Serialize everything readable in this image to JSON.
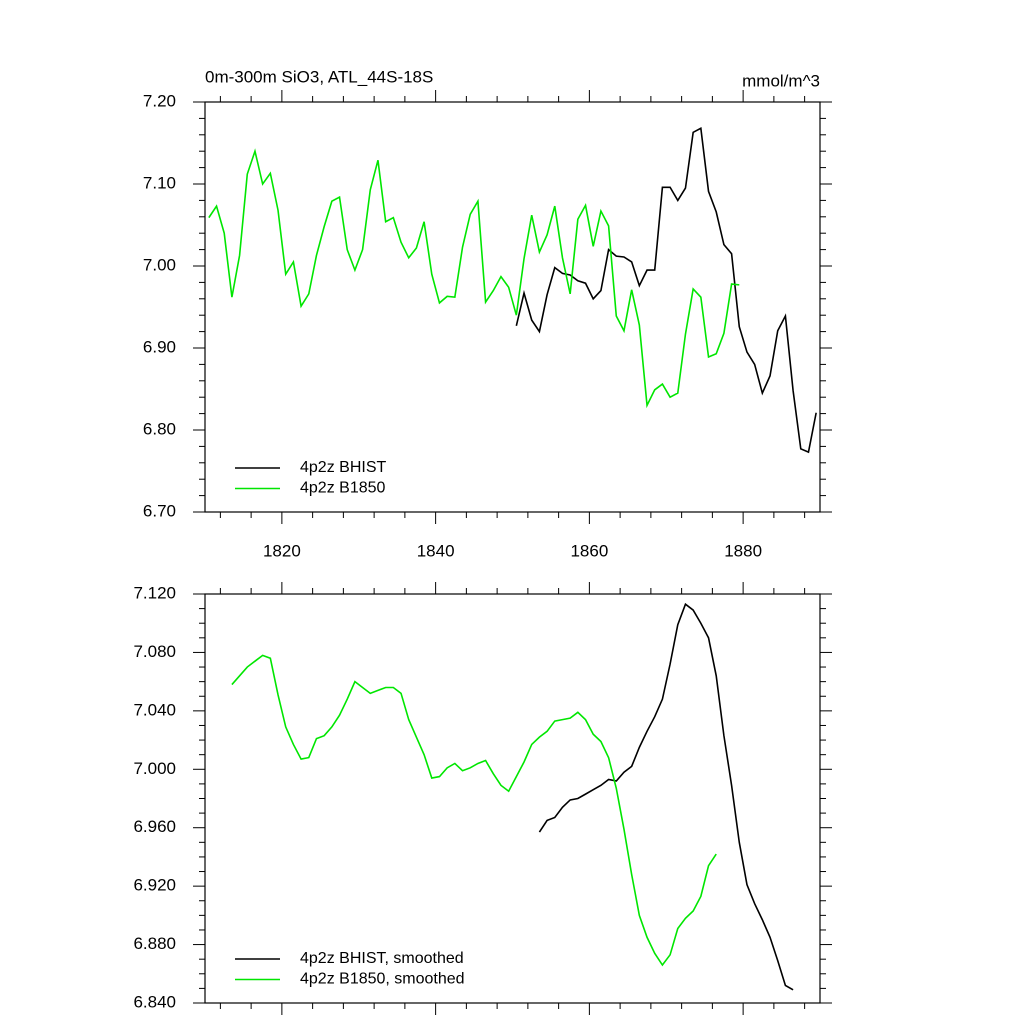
{
  "chart_data": [
    {
      "type": "line",
      "title": "0m-300m SiO3, ATL_44S-18S",
      "units": "mmol/m^3",
      "xlim": [
        1810,
        1890
      ],
      "xticks": [
        1820,
        1840,
        1860,
        1880
      ],
      "ylim": [
        6.7,
        7.2
      ],
      "yticks": [
        {
          "value": 6.7,
          "label": "6.70"
        },
        {
          "value": 6.8,
          "label": "6.80"
        },
        {
          "value": 6.9,
          "label": "6.90"
        },
        {
          "value": 7.0,
          "label": "7.00"
        },
        {
          "value": 7.1,
          "label": "7.10"
        },
        {
          "value": 7.2,
          "label": "7.20"
        }
      ],
      "legend": "lower left",
      "series": [
        {
          "name": "4p2z BHIST",
          "color": "#000000",
          "x": [
            1850.5,
            1851.5,
            1852.5,
            1853.5,
            1854.5,
            1855.5,
            1856.5,
            1857.5,
            1858.5,
            1859.5,
            1860.5,
            1861.5,
            1862.5,
            1863.5,
            1864.5,
            1865.5,
            1866.5,
            1867.5,
            1868.5,
            1869.5,
            1870.5,
            1871.5,
            1872.5,
            1873.5,
            1874.5,
            1875.5,
            1876.5,
            1877.5,
            1878.5,
            1879.5,
            1880.5,
            1881.5,
            1882.5,
            1883.5,
            1884.5,
            1885.5,
            1886.5,
            1887.5,
            1888.5,
            1889.5
          ],
          "values": [
            6.927,
            6.967,
            6.934,
            6.92,
            6.965,
            6.998,
            6.991,
            6.989,
            6.982,
            6.979,
            6.96,
            6.97,
            7.02,
            7.012,
            7.011,
            7.005,
            6.976,
            6.995,
            6.995,
            7.096,
            7.096,
            7.08,
            7.095,
            7.163,
            7.168,
            7.091,
            7.066,
            7.026,
            7.015,
            6.926,
            6.895,
            6.88,
            6.845,
            6.866,
            6.921,
            6.939,
            6.848,
            6.777,
            6.773,
            6.821
          ]
        },
        {
          "name": "4p2z B1850",
          "color": "#00e600",
          "x": [
            1810.5,
            1811.5,
            1812.5,
            1813.5,
            1814.5,
            1815.5,
            1816.5,
            1817.5,
            1818.5,
            1819.5,
            1820.5,
            1821.5,
            1822.5,
            1823.5,
            1824.5,
            1825.5,
            1826.5,
            1827.5,
            1828.5,
            1829.5,
            1830.5,
            1831.5,
            1832.5,
            1833.5,
            1834.5,
            1835.5,
            1836.5,
            1837.5,
            1838.5,
            1839.5,
            1840.5,
            1841.5,
            1842.5,
            1843.5,
            1844.5,
            1845.5,
            1846.5,
            1847.5,
            1848.5,
            1849.5,
            1850.5,
            1851.5,
            1852.5,
            1853.5,
            1854.5,
            1855.5,
            1856.5,
            1857.5,
            1858.5,
            1859.5,
            1860.5,
            1861.5,
            1862.5,
            1863.5,
            1864.5,
            1865.5,
            1866.5,
            1867.5,
            1868.5,
            1869.5,
            1870.5,
            1871.5,
            1872.5,
            1873.5,
            1874.5,
            1875.5,
            1876.5,
            1877.5,
            1878.5,
            1879.5
          ],
          "values": [
            7.059,
            7.073,
            7.04,
            6.962,
            7.013,
            7.112,
            7.14,
            7.1,
            7.113,
            7.068,
            6.99,
            7.005,
            6.951,
            6.966,
            7.013,
            7.048,
            7.079,
            7.084,
            7.02,
            6.995,
            7.02,
            7.093,
            7.129,
            7.054,
            7.059,
            7.029,
            7.01,
            7.022,
            7.054,
            6.99,
            6.955,
            6.963,
            6.962,
            7.023,
            7.063,
            7.079,
            6.956,
            6.97,
            6.987,
            6.974,
            6.94,
            7.009,
            7.062,
            7.017,
            7.038,
            7.073,
            7.01,
            6.966,
            7.057,
            7.074,
            7.024,
            7.067,
            7.049,
            6.939,
            6.921,
            6.971,
            6.928,
            6.83,
            6.849,
            6.856,
            6.84,
            6.845,
            6.917,
            6.972,
            6.962,
            6.889,
            6.893,
            6.918,
            6.978,
            6.977
          ]
        }
      ]
    },
    {
      "type": "line",
      "xlim": [
        1810,
        1890
      ],
      "xticks": [
        1820,
        1840,
        1860,
        1880
      ],
      "ylim": [
        6.84,
        7.12
      ],
      "yticks": [
        {
          "value": 6.84,
          "label": "6.840"
        },
        {
          "value": 6.88,
          "label": "6.880"
        },
        {
          "value": 6.92,
          "label": "6.920"
        },
        {
          "value": 6.96,
          "label": "6.960"
        },
        {
          "value": 7.0,
          "label": "7.000"
        },
        {
          "value": 7.04,
          "label": "7.040"
        },
        {
          "value": 7.08,
          "label": "7.080"
        },
        {
          "value": 7.12,
          "label": "7.120"
        }
      ],
      "legend": "lower left",
      "series": [
        {
          "name": "4p2z BHIST, smoothed",
          "color": "#000000",
          "x": [
            1853.5,
            1854.5,
            1855.5,
            1856.5,
            1857.5,
            1858.5,
            1859.5,
            1860.5,
            1861.5,
            1862.5,
            1863.5,
            1864.5,
            1865.5,
            1866.5,
            1867.5,
            1868.5,
            1869.5,
            1870.5,
            1871.5,
            1872.5,
            1873.5,
            1874.5,
            1875.5,
            1876.5,
            1877.5,
            1878.5,
            1879.5,
            1880.5,
            1881.5,
            1882.5,
            1883.5,
            1884.5,
            1885.5,
            1886.5
          ],
          "values": [
            6.957,
            6.965,
            6.967,
            6.974,
            6.979,
            6.98,
            6.983,
            6.986,
            6.989,
            6.993,
            6.992,
            6.998,
            7.002,
            7.015,
            7.026,
            7.036,
            7.048,
            7.072,
            7.099,
            7.113,
            7.109,
            7.1,
            7.09,
            7.064,
            7.023,
            6.989,
            6.95,
            6.921,
            6.908,
            6.897,
            6.885,
            6.869,
            6.852,
            6.849
          ]
        },
        {
          "name": "4p2z B1850, smoothed",
          "color": "#00e600",
          "x": [
            1813.5,
            1814.5,
            1815.5,
            1816.5,
            1817.5,
            1818.5,
            1819.5,
            1820.5,
            1821.5,
            1822.5,
            1823.5,
            1824.5,
            1825.5,
            1826.5,
            1827.5,
            1828.5,
            1829.5,
            1830.5,
            1831.5,
            1832.5,
            1833.5,
            1834.5,
            1835.5,
            1836.5,
            1837.5,
            1838.5,
            1839.5,
            1840.5,
            1841.5,
            1842.5,
            1843.5,
            1844.5,
            1845.5,
            1846.5,
            1847.5,
            1848.5,
            1849.5,
            1850.5,
            1851.5,
            1852.5,
            1853.5,
            1854.5,
            1855.5,
            1856.5,
            1857.5,
            1858.5,
            1859.5,
            1860.5,
            1861.5,
            1862.5,
            1863.5,
            1864.5,
            1865.5,
            1866.5,
            1867.5,
            1868.5,
            1869.5,
            1870.5,
            1871.5,
            1872.5,
            1873.5,
            1874.5,
            1875.5,
            1876.5
          ],
          "values": [
            7.058,
            7.064,
            7.07,
            7.074,
            7.078,
            7.076,
            7.051,
            7.029,
            7.017,
            7.007,
            7.008,
            7.021,
            7.023,
            7.029,
            7.037,
            7.048,
            7.06,
            7.056,
            7.052,
            7.054,
            7.056,
            7.056,
            7.052,
            7.034,
            7.022,
            7.01,
            6.994,
            6.995,
            7.001,
            7.004,
            6.999,
            7.001,
            7.004,
            7.006,
            6.997,
            6.989,
            6.985,
            6.995,
            7.005,
            7.017,
            7.022,
            7.026,
            7.033,
            7.034,
            7.035,
            7.039,
            7.034,
            7.024,
            7.019,
            7.008,
            6.987,
            6.959,
            6.928,
            6.9,
            6.885,
            6.874,
            6.866,
            6.873,
            6.891,
            6.898,
            6.903,
            6.913,
            6.934,
            6.942
          ]
        }
      ]
    }
  ]
}
